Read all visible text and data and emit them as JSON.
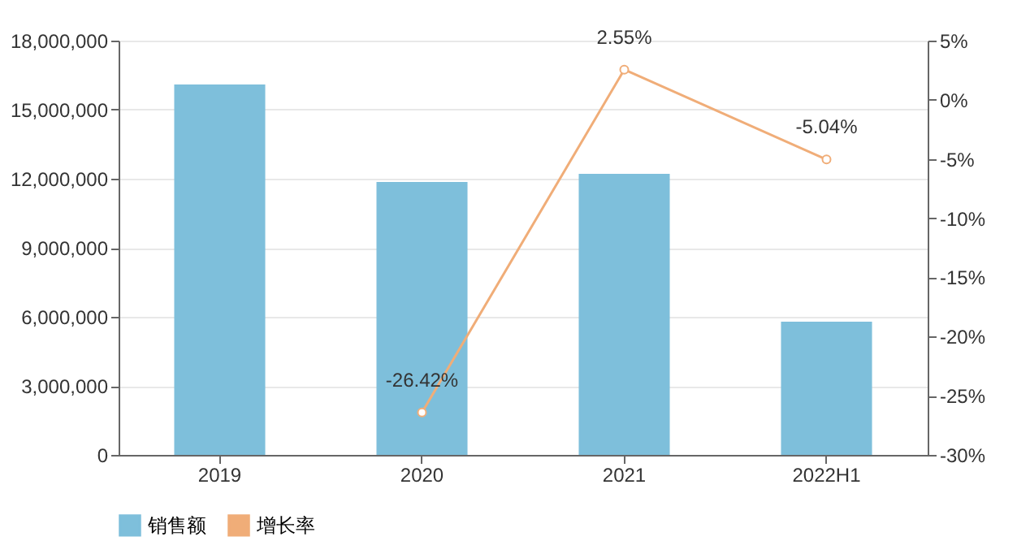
{
  "chart_data": {
    "type": "bar",
    "categories": [
      "2019",
      "2020",
      "2021",
      "2022H1"
    ],
    "series": [
      {
        "name": "销售额",
        "color": "#7ebfdb",
        "values": [
          16090000,
          11860000,
          12210000,
          5790000
        ]
      },
      {
        "name": "增长率",
        "type": "line",
        "axis": "y2",
        "color": "#f0ad78",
        "values": [
          null,
          -26.42,
          2.55,
          -5.04
        ],
        "value_labels": [
          null,
          "-26.42%",
          "2.55%",
          "-5.04%"
        ]
      }
    ],
    "ylim": [
      0,
      18000000
    ],
    "yticks": [
      0,
      {
        "value": 3000000,
        "label": "3,000,000"
      },
      {
        "value": 6000000,
        "label": "6,000,000"
      },
      {
        "value": 9000000,
        "label": "9,000,000"
      },
      {
        "value": 12000000,
        "label": "12,000,000"
      },
      {
        "value": 15000000,
        "label": "15,000,000"
      },
      {
        "value": 18000000,
        "label": "18,000,000"
      }
    ],
    "y2lim": [
      -30,
      5
    ],
    "y2ticks": [
      {
        "value": -30,
        "label": "-30%"
      },
      {
        "value": -25,
        "label": "-25%"
      },
      {
        "value": -20,
        "label": "-20%"
      },
      {
        "value": -15,
        "label": "-15%"
      },
      {
        "value": -10,
        "label": "-10%"
      },
      {
        "value": -5,
        "label": "-5%"
      },
      {
        "value": 0,
        "label": "0%"
      },
      {
        "value": 5,
        "label": "5%"
      }
    ],
    "grid": "y",
    "legend": "bottom",
    "marker": "circle"
  }
}
